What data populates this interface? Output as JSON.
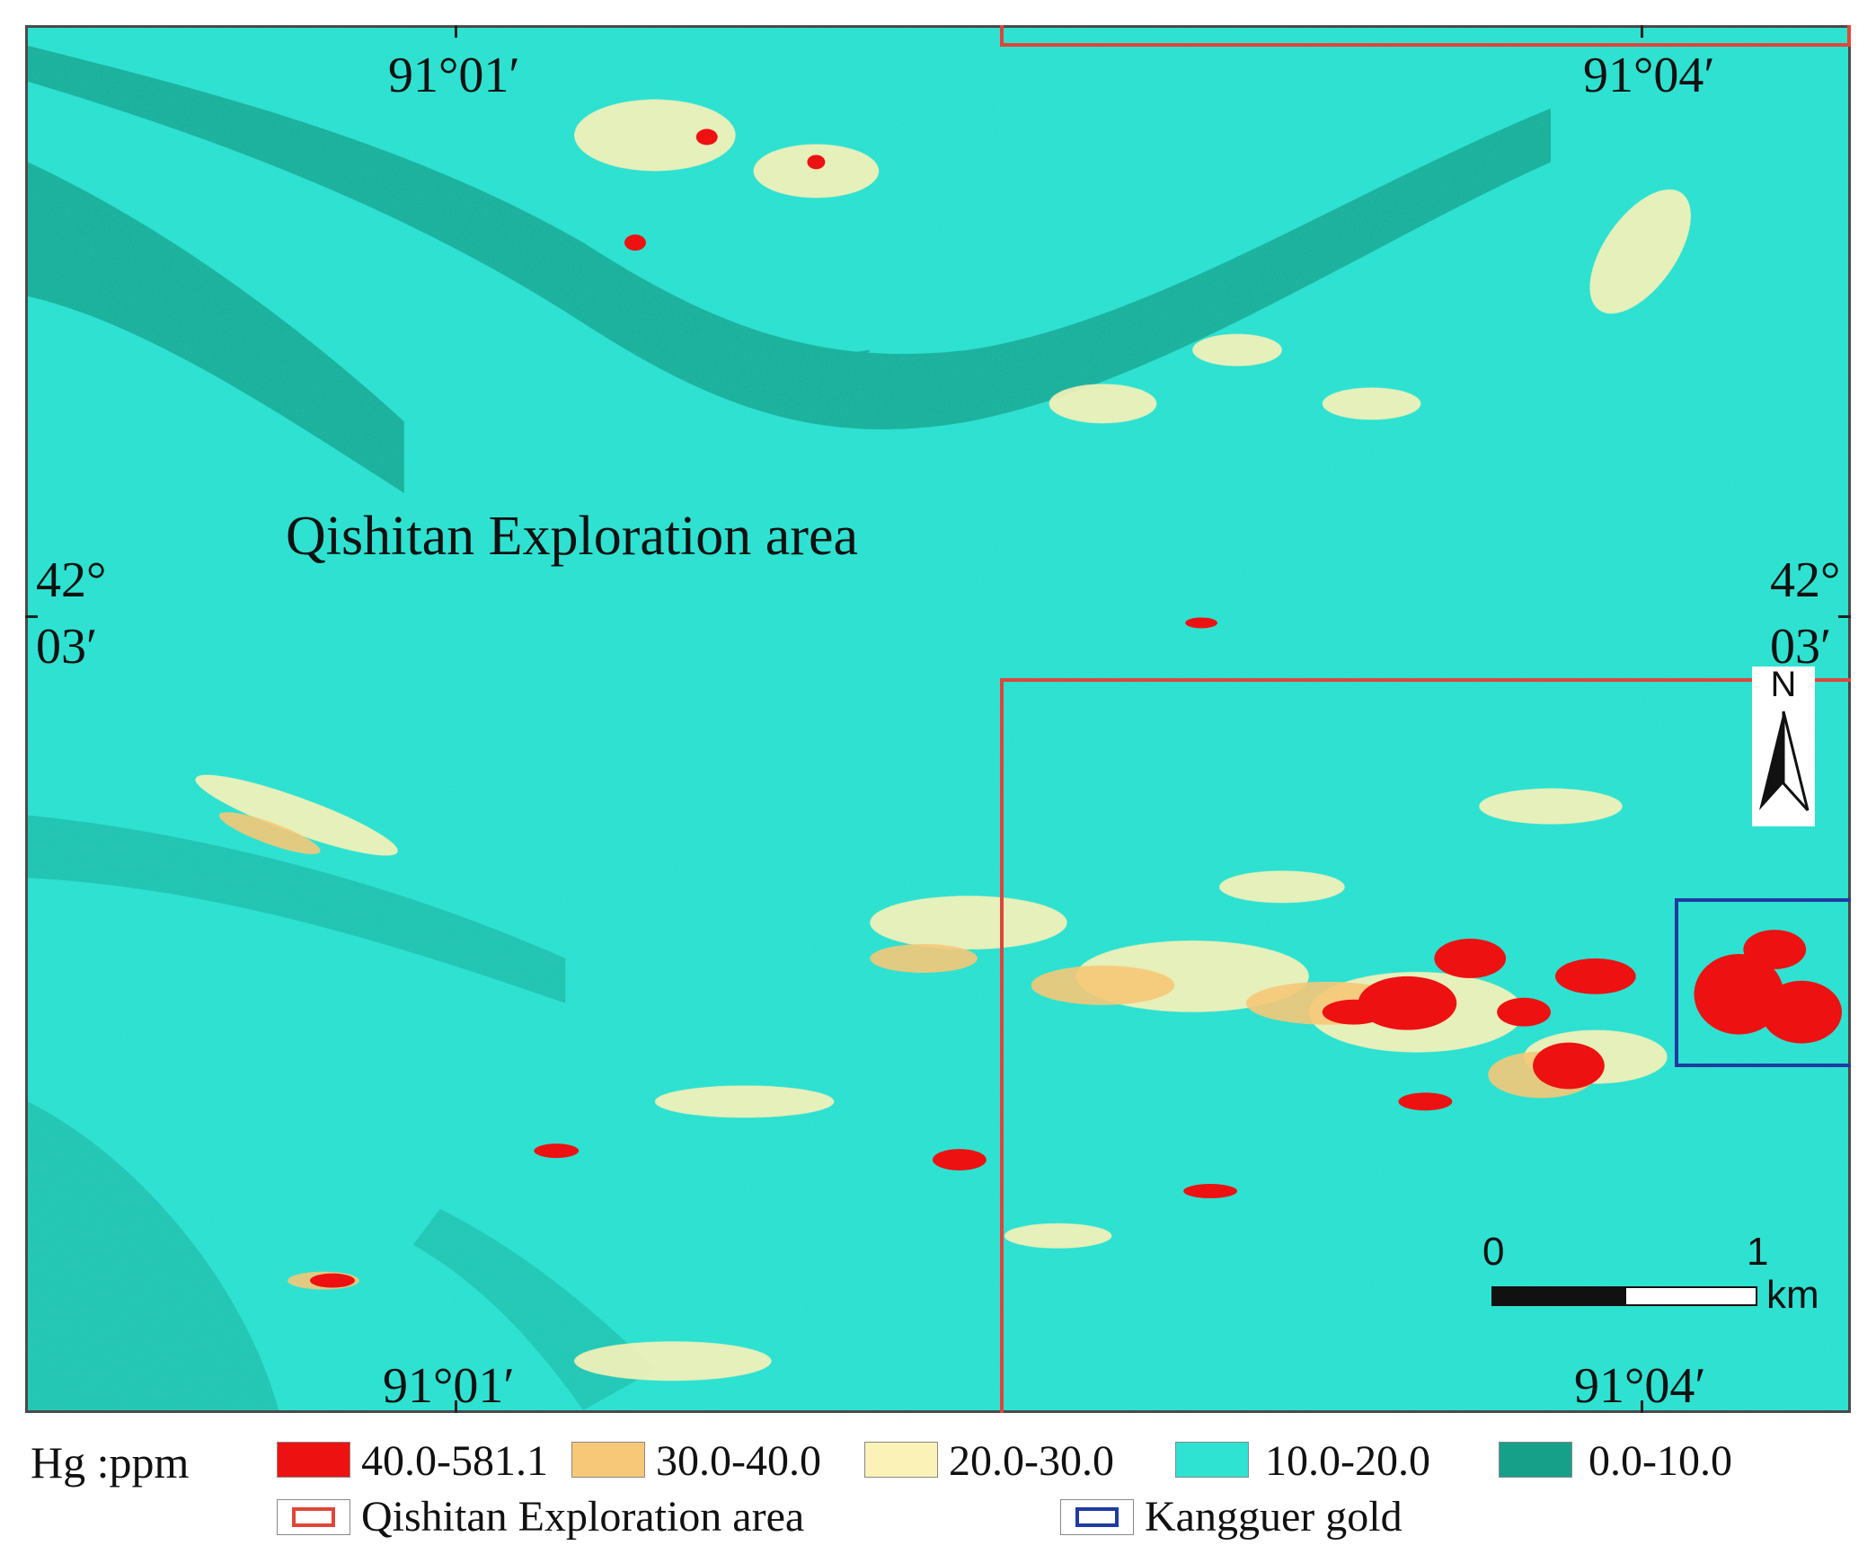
{
  "map": {
    "label": "Qishitan Exploration area",
    "coords": {
      "top_left": "91°01′",
      "top_right": "91°04′",
      "bottom_left": "91°01′",
      "bottom_right": "91°04′",
      "left_lat_deg": "42°",
      "left_lat_min": "03′",
      "right_lat_deg": "42°",
      "right_lat_min": "03′"
    },
    "north_arrow": {
      "letter": "N",
      "icon": "north-arrow-icon"
    },
    "scale_bar": {
      "start": "0",
      "end": "1",
      "unit": "km"
    }
  },
  "legend": {
    "title": "Hg :ppm",
    "classes": [
      {
        "label": "40.0-581.1",
        "color": "#ee1111"
      },
      {
        "label": "30.0-40.0",
        "color": "#f7c878"
      },
      {
        "label": "20.0-30.0",
        "color": "#fbf2b8"
      },
      {
        "label": "10.0-20.0",
        "color": "#2ee3d2"
      },
      {
        "label": "0.0-10.0",
        "color": "#16a08a"
      }
    ],
    "boundaries": [
      {
        "label": "Qishitan Exploration area",
        "color": "#e0453a"
      },
      {
        "label": "Kangguer gold",
        "color": "#1f3aa0"
      }
    ]
  }
}
